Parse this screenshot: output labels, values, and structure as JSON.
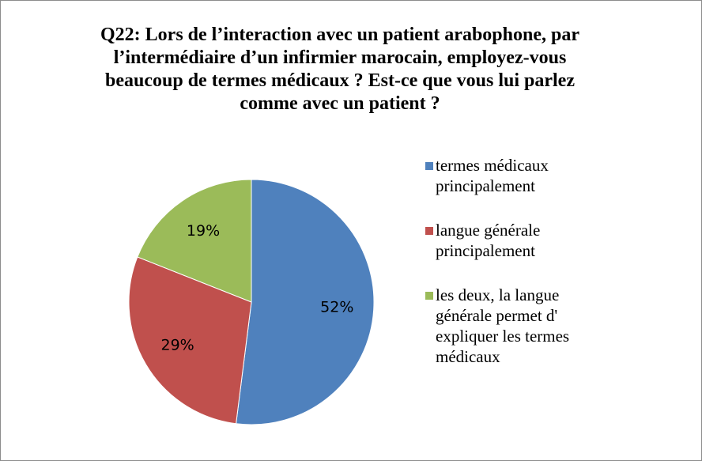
{
  "chart_data": {
    "type": "pie",
    "title": "Q22:  Lors de l’interaction avec un patient arabophone, par l’intermédiaire d’un infirmier marocain, employez-vous beaucoup de termes médicaux ? Est-ce que vous lui parlez comme avec un patient ?",
    "categories": [
      "termes médicaux principalement",
      "langue générale principalement",
      "les deux, la langue générale permet d' expliquer les termes médicaux"
    ],
    "values": [
      52,
      29,
      19
    ],
    "value_labels": [
      "52%",
      "29%",
      "19%"
    ],
    "colors": [
      "#4f81bd",
      "#c0504d",
      "#9bbb59"
    ],
    "legend": "right"
  }
}
